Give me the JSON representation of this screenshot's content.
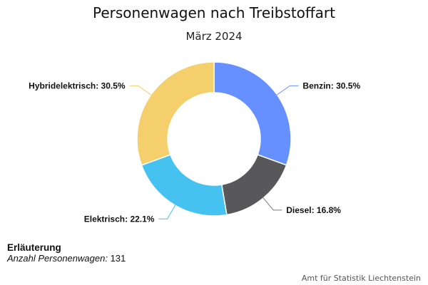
{
  "chart_data": {
    "type": "pie",
    "variant": "donut",
    "title": "Personenwagen nach Treibstoffart",
    "subtitle": "März 2024",
    "slices": [
      {
        "label": "Benzin",
        "value": 30.5,
        "color": "#6690ff"
      },
      {
        "label": "Diesel",
        "value": 16.8,
        "color": "#58585a"
      },
      {
        "label": "Elektrisch",
        "value": 22.1,
        "color": "#45c2f0"
      },
      {
        "label": "Hybridelektrisch",
        "value": 30.5,
        "color": "#f4cf6b"
      }
    ],
    "value_suffix": "%"
  },
  "note": {
    "heading": "Erläuterung",
    "label": "Anzahl Personenwagen:",
    "value": "131"
  },
  "credit": "Amt für Statistik Liechtenstein"
}
